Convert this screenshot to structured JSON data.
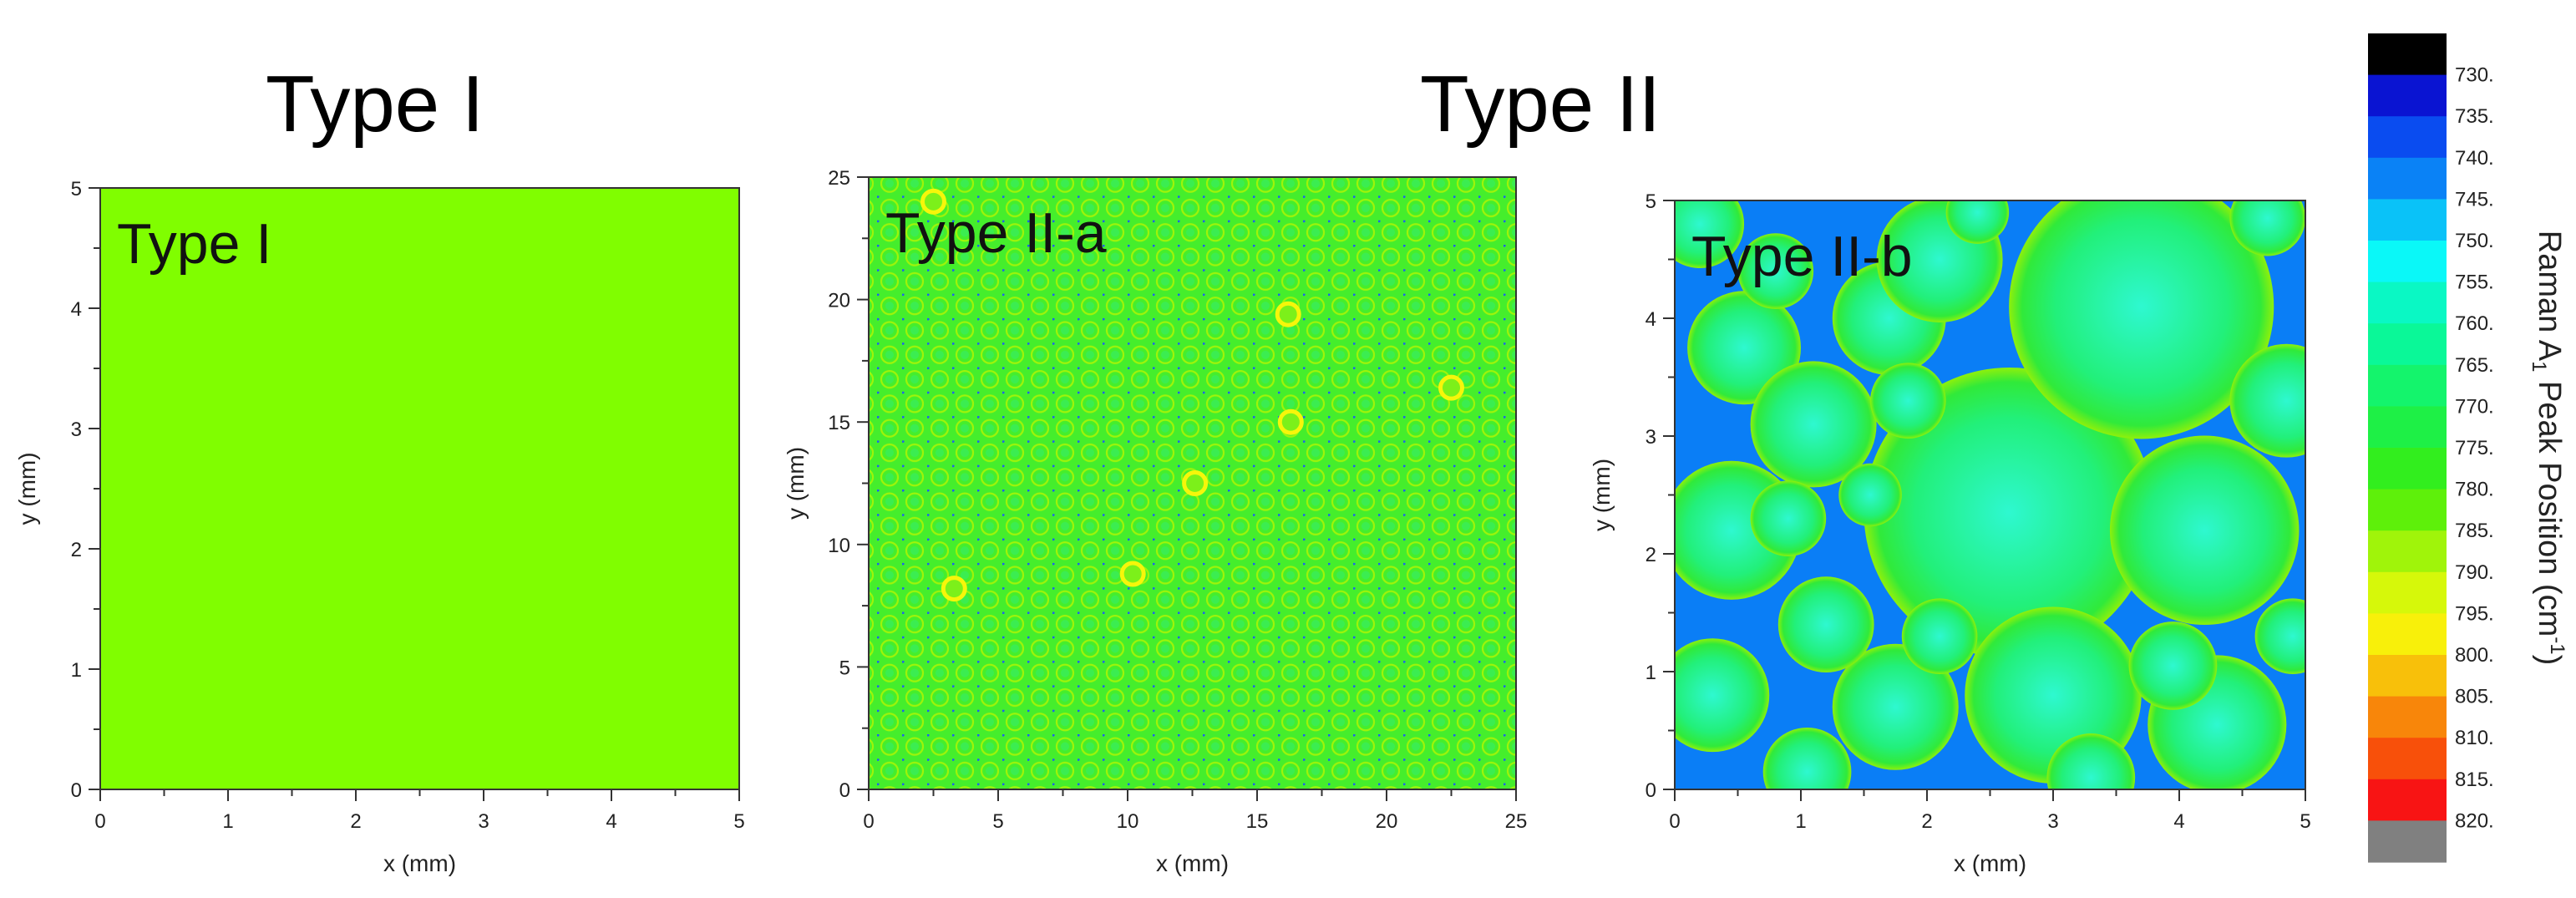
{
  "headers": {
    "left": "Type I",
    "right": "Type II"
  },
  "colors": {
    "type1_fill": "#80fe00",
    "typeIIa_base": "#45ee2c",
    "typeIIb_particle": "#22f07a",
    "typeIIb_core": "#2ef8d0",
    "typeIIb_gap": "#0a7ef6",
    "defect_ring": "#f6f60a"
  },
  "chart_data": [
    {
      "type": "heatmap",
      "panel_label": "Type I",
      "xlabel": "x (mm)",
      "ylabel": "y (mm)",
      "xlim": [
        0,
        5
      ],
      "ylim": [
        0,
        5
      ],
      "xticks": [
        "0",
        "1",
        "2",
        "3",
        "4",
        "5"
      ],
      "yticks": [
        "0",
        "1",
        "2",
        "3",
        "4",
        "5"
      ],
      "uniform_value_cm-1": 787
    },
    {
      "type": "heatmap",
      "panel_label": "Type II-a",
      "xlabel": "x (mm)",
      "ylabel": "y (mm)",
      "xlim": [
        0,
        25
      ],
      "ylim": [
        0,
        25
      ],
      "xticks": [
        "0",
        "5",
        "10",
        "15",
        "20",
        "25"
      ],
      "yticks": [
        "0",
        "5",
        "10",
        "15",
        "20",
        "25"
      ],
      "background_value_cm-1": 777,
      "defects": [
        {
          "x": 2.5,
          "y": 24.0
        },
        {
          "x": 3.3,
          "y": 8.2
        },
        {
          "x": 10.2,
          "y": 8.8
        },
        {
          "x": 12.6,
          "y": 12.5
        },
        {
          "x": 16.2,
          "y": 19.4
        },
        {
          "x": 16.3,
          "y": 15.0
        },
        {
          "x": 22.5,
          "y": 16.4
        }
      ]
    },
    {
      "type": "heatmap",
      "panel_label": "Type II-b",
      "xlabel": "x (mm)",
      "ylabel": "y (mm)",
      "xlim": [
        0,
        5
      ],
      "ylim": [
        0,
        5
      ],
      "xticks": [
        "0",
        "1",
        "2",
        "3",
        "4",
        "5"
      ],
      "yticks": [
        "0",
        "1",
        "2",
        "3",
        "4",
        "5"
      ],
      "gap_value_cm-1": 742,
      "particle_edge_value_cm-1": 772,
      "particle_core_value_cm-1": 760,
      "particles": [
        {
          "x": 2.65,
          "y": 2.35,
          "r": 1.15
        },
        {
          "x": 3.7,
          "y": 4.1,
          "r": 1.05
        },
        {
          "x": 4.2,
          "y": 2.2,
          "r": 0.75
        },
        {
          "x": 3.0,
          "y": 0.8,
          "r": 0.7
        },
        {
          "x": 1.75,
          "y": 0.7,
          "r": 0.5
        },
        {
          "x": 4.3,
          "y": 0.55,
          "r": 0.55
        },
        {
          "x": 0.45,
          "y": 2.2,
          "r": 0.55
        },
        {
          "x": 0.55,
          "y": 3.75,
          "r": 0.45
        },
        {
          "x": 0.3,
          "y": 0.8,
          "r": 0.45
        },
        {
          "x": 1.1,
          "y": 3.1,
          "r": 0.5
        },
        {
          "x": 1.7,
          "y": 4.0,
          "r": 0.45
        },
        {
          "x": 1.2,
          "y": 1.4,
          "r": 0.38
        },
        {
          "x": 2.1,
          "y": 4.5,
          "r": 0.5
        },
        {
          "x": 0.2,
          "y": 4.8,
          "r": 0.35
        },
        {
          "x": 1.85,
          "y": 3.3,
          "r": 0.3
        },
        {
          "x": 4.85,
          "y": 3.3,
          "r": 0.45
        },
        {
          "x": 1.05,
          "y": 0.15,
          "r": 0.35
        },
        {
          "x": 0.9,
          "y": 2.3,
          "r": 0.3
        },
        {
          "x": 3.95,
          "y": 1.05,
          "r": 0.35
        },
        {
          "x": 4.9,
          "y": 1.3,
          "r": 0.3
        },
        {
          "x": 2.4,
          "y": 4.9,
          "r": 0.25
        },
        {
          "x": 0.8,
          "y": 4.4,
          "r": 0.3
        },
        {
          "x": 1.55,
          "y": 2.5,
          "r": 0.25
        },
        {
          "x": 2.1,
          "y": 1.3,
          "r": 0.3
        },
        {
          "x": 3.3,
          "y": 0.1,
          "r": 0.35
        },
        {
          "x": 4.7,
          "y": 4.85,
          "r": 0.3
        }
      ]
    }
  ],
  "colorbar": {
    "title_prefix": "Raman A",
    "title_sub": "1",
    "title_mid": " Peak Position (cm",
    "title_sup": "-1",
    "title_end": ")",
    "labels": [
      "730.",
      "735.",
      "740.",
      "745.",
      "750.",
      "755.",
      "760.",
      "765.",
      "770.",
      "775.",
      "780.",
      "785.",
      "790.",
      "795.",
      "800.",
      "805.",
      "810.",
      "815.",
      "820."
    ],
    "colors": [
      "#000000",
      "#0a14d2",
      "#0a4cf0",
      "#0a82f6",
      "#0ac2f8",
      "#0af8f8",
      "#0af8c4",
      "#0af898",
      "#14f46c",
      "#1ef046",
      "#32ee1e",
      "#5ef00a",
      "#a0f40a",
      "#d6f80a",
      "#f8f00a",
      "#f8c00a",
      "#f8860a",
      "#f8500a",
      "#f81414",
      "#808080"
    ]
  }
}
